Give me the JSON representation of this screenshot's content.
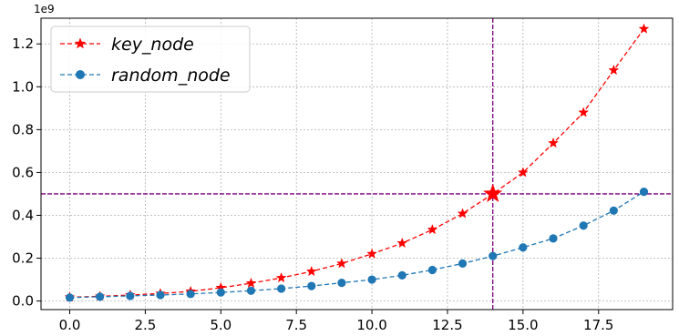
{
  "chart_data": {
    "type": "line",
    "axis_offset_label": "1e9",
    "x": [
      0,
      1,
      2,
      3,
      4,
      5,
      6,
      7,
      8,
      9,
      10,
      11,
      12,
      13,
      14,
      15,
      16,
      17,
      18,
      19
    ],
    "xlim": [
      -0.95,
      19.95
    ],
    "ylim": [
      -0.04,
      1.32
    ],
    "xticks": [
      0.0,
      2.5,
      5.0,
      7.5,
      10.0,
      12.5,
      15.0,
      17.5
    ],
    "xtick_labels": [
      "0.0",
      "2.5",
      "5.0",
      "7.5",
      "10.0",
      "12.5",
      "15.0",
      "17.5"
    ],
    "yticks": [
      0.0,
      0.2,
      0.4,
      0.6,
      0.8,
      1.0,
      1.2
    ],
    "ytick_labels": [
      "0.0",
      "0.2",
      "0.4",
      "0.6",
      "0.8",
      "1.0",
      "1.2"
    ],
    "grid": true,
    "legend_position": "top-left",
    "series": [
      {
        "name": "key_node",
        "color": "#ff0000",
        "marker": "star",
        "linestyle": "dashed",
        "values": [
          0.018,
          0.022,
          0.028,
          0.035,
          0.045,
          0.062,
          0.083,
          0.108,
          0.138,
          0.175,
          0.22,
          0.27,
          0.333,
          0.408,
          0.5,
          0.6,
          0.737,
          0.88,
          1.077,
          1.27
        ]
      },
      {
        "name": "random_node",
        "color": "#1f77b4",
        "marker": "circle",
        "linestyle": "dashed",
        "values": [
          0.016,
          0.02,
          0.024,
          0.028,
          0.033,
          0.04,
          0.048,
          0.058,
          0.07,
          0.085,
          0.1,
          0.12,
          0.145,
          0.175,
          0.21,
          0.25,
          0.292,
          0.352,
          0.422,
          0.51
        ]
      }
    ],
    "reference_lines": [
      {
        "orientation": "vertical",
        "value": 14,
        "color": "#800080"
      },
      {
        "orientation": "horizontal",
        "value": 0.5,
        "color": "#800080"
      }
    ],
    "highlight_point": {
      "x": 14,
      "y": 0.5,
      "color": "#ff0000",
      "marker": "star"
    }
  }
}
